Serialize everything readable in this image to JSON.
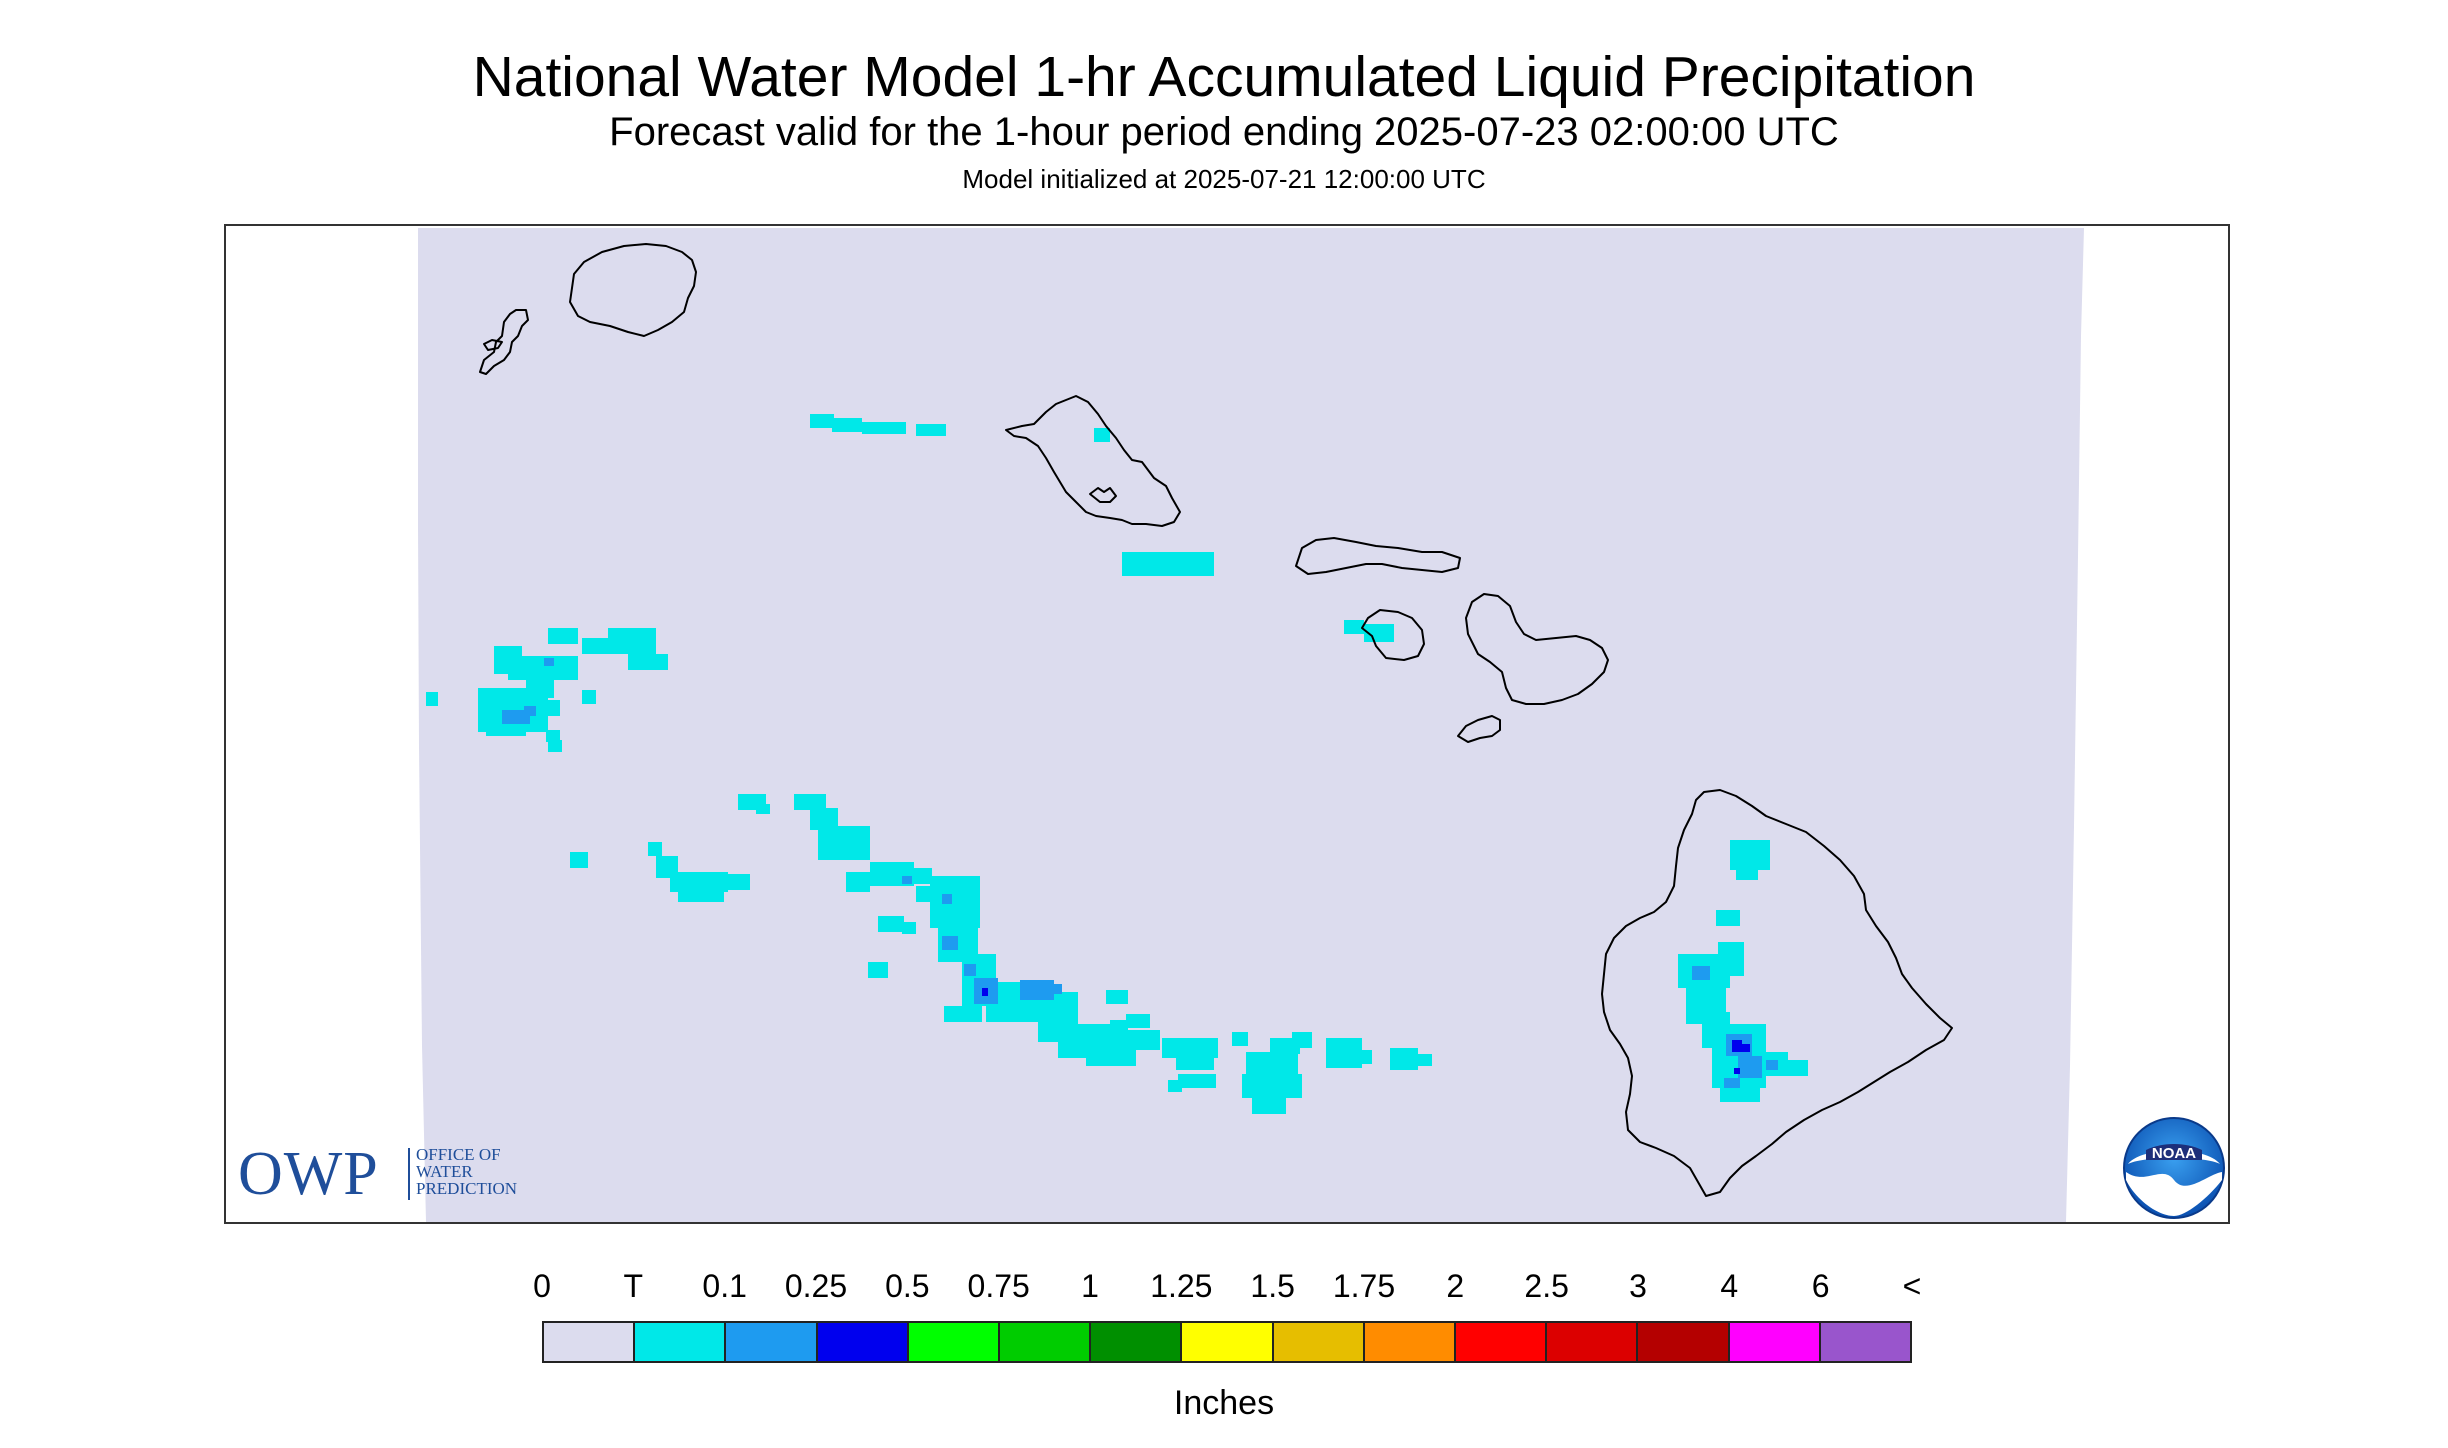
{
  "header": {
    "title": "National Water Model 1-hr Accumulated Liquid Precipitation",
    "subtitle": "Forecast valid for the 1-hour period ending 2025-07-23 02:00:00 UTC",
    "init": "Model initialized at 2025-07-21 12:00:00 UTC"
  },
  "logos": {
    "owp_big": "OWP",
    "owp_small_1": "OFFICE OF",
    "owp_small_2": "WATER",
    "owp_small_3": "PREDICTION",
    "noaa": "NOAA"
  },
  "legend": {
    "labels": [
      "0",
      "T",
      "0.1",
      "0.25",
      "0.5",
      "0.75",
      "1",
      "1.25",
      "1.5",
      "1.75",
      "2",
      "2.5",
      "3",
      "4",
      "6",
      "<"
    ],
    "colors": [
      "#dcdcee",
      "#00e8e8",
      "#1e9bf0",
      "#0000ee",
      "#00ff00",
      "#00cc00",
      "#008f00",
      "#ffff00",
      "#e6be00",
      "#ff8c00",
      "#ff0000",
      "#dc0000",
      "#b40000",
      "#ff00ff",
      "#9955cc"
    ],
    "units": "Inches"
  },
  "map": {
    "background_color": "#dcdcee",
    "coast_color": "#000000",
    "islands": [
      "Niihau",
      "Kauai",
      "Oahu",
      "Molokai",
      "Lanai",
      "Maui",
      "Kahoolawe",
      "Hawaii"
    ]
  }
}
